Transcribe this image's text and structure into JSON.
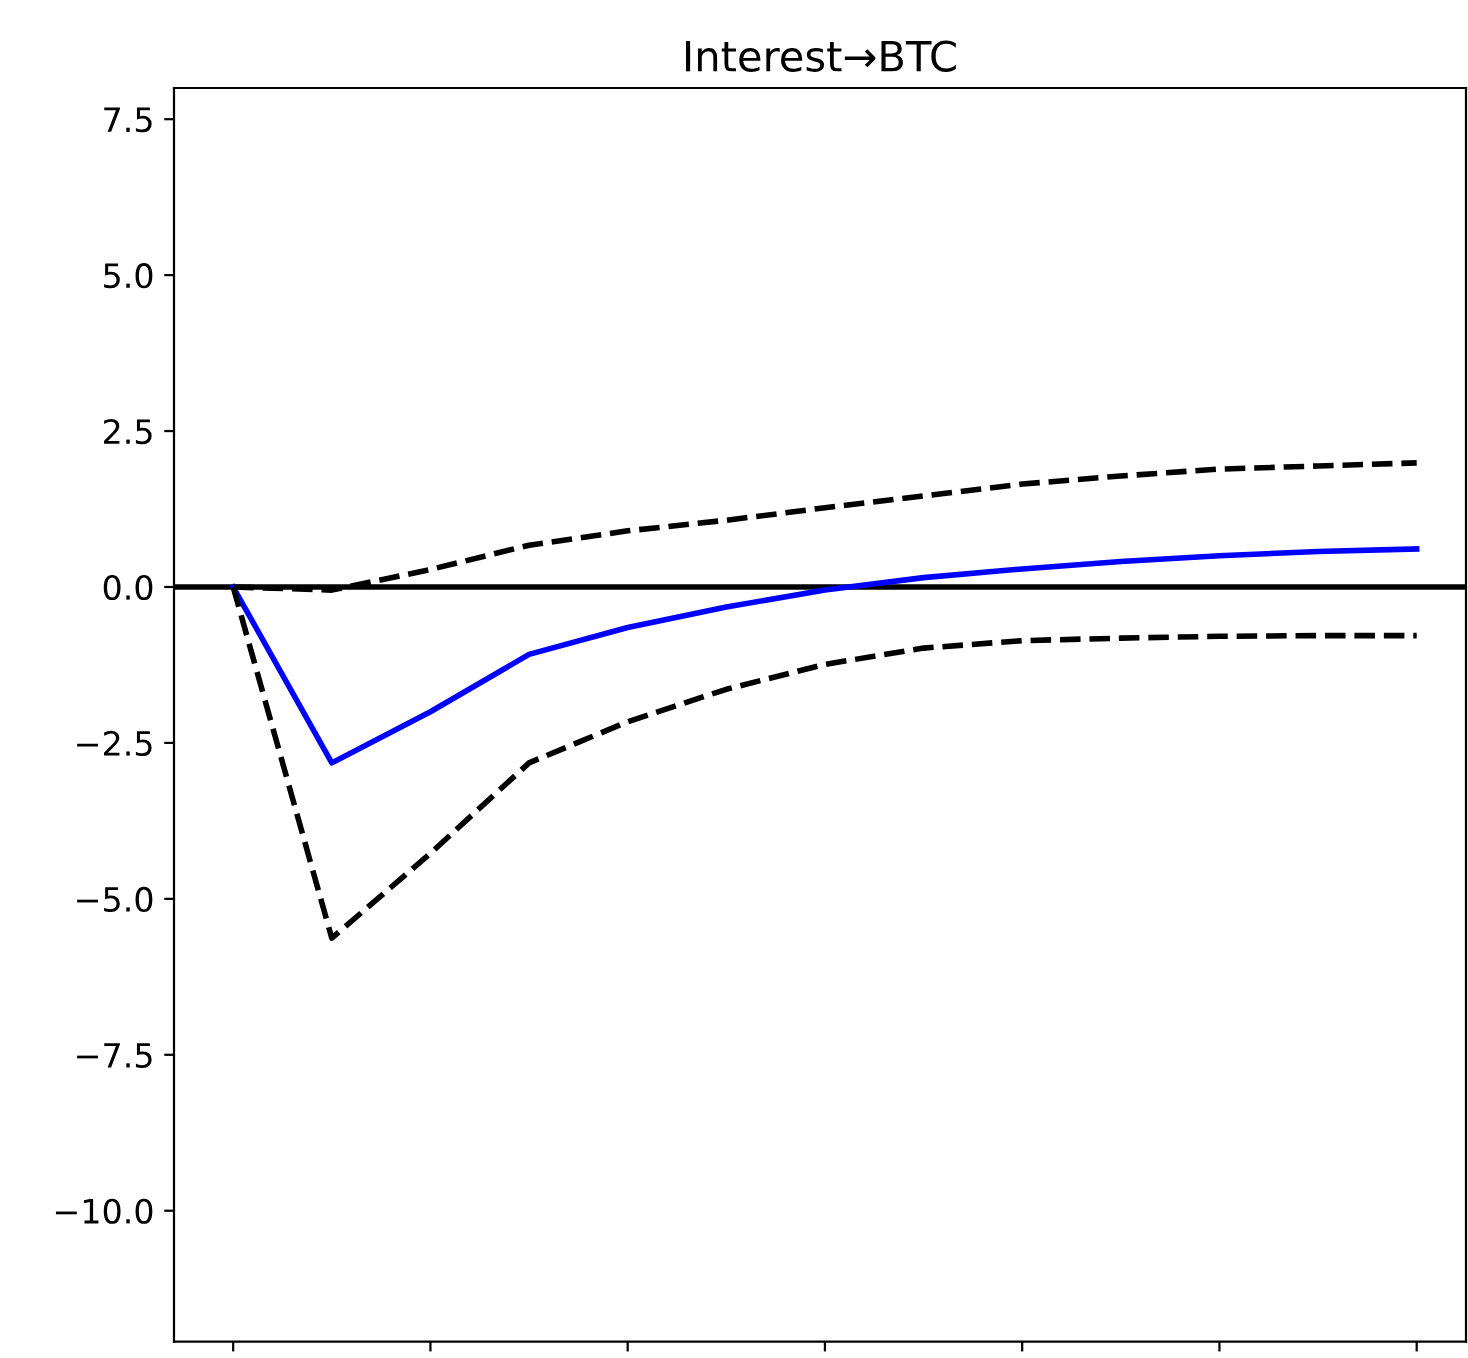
{
  "chart_data": {
    "type": "line",
    "title": "Interest→BTC",
    "categories": [
      null,
      null,
      null,
      null,
      null,
      null,
      null,
      null,
      null,
      null,
      null,
      null,
      null
    ],
    "series": [
      {
        "color": "#0000ff",
        "line_style": "solid",
        "values": [
          0,
          -2.82,
          -2.0,
          -1.08,
          -0.65,
          -0.32,
          -0.05,
          0.15,
          0.29,
          0.41,
          0.5,
          0.57,
          0.61
        ]
      },
      {
        "color": "#000000",
        "line_style": "dashed",
        "values": [
          0,
          -0.05,
          0.28,
          0.67,
          0.9,
          1.07,
          1.27,
          1.46,
          1.65,
          1.78,
          1.89,
          1.94,
          1.99
        ]
      },
      {
        "color": "#000000",
        "line_style": "dashed",
        "values": [
          0,
          -5.63,
          -4.27,
          -2.82,
          -2.16,
          -1.64,
          -1.24,
          -0.98,
          -0.86,
          -0.82,
          -0.79,
          -0.78,
          -0.78
        ]
      }
    ],
    "ylim": [
      -12.1,
      8.0
    ],
    "yticks": [
      {
        "value": -10.0,
        "label": "−10.0"
      },
      {
        "value": -7.5,
        "label": "−7.5"
      },
      {
        "value": -5.0,
        "label": "−5.0"
      },
      {
        "value": -2.5,
        "label": "−2.5"
      },
      {
        "value": 0.0,
        "label": "0.0"
      },
      {
        "value": 2.5,
        "label": "2.5"
      },
      {
        "value": 5.0,
        "label": "5.0"
      },
      {
        "value": 7.5,
        "label": "7.5"
      }
    ],
    "ref_lines": [
      {
        "axis": "y",
        "value": 0,
        "color": "#000000",
        "line_style": "solid"
      }
    ],
    "tick_labels": "y",
    "grid": false,
    "marker": "none"
  }
}
